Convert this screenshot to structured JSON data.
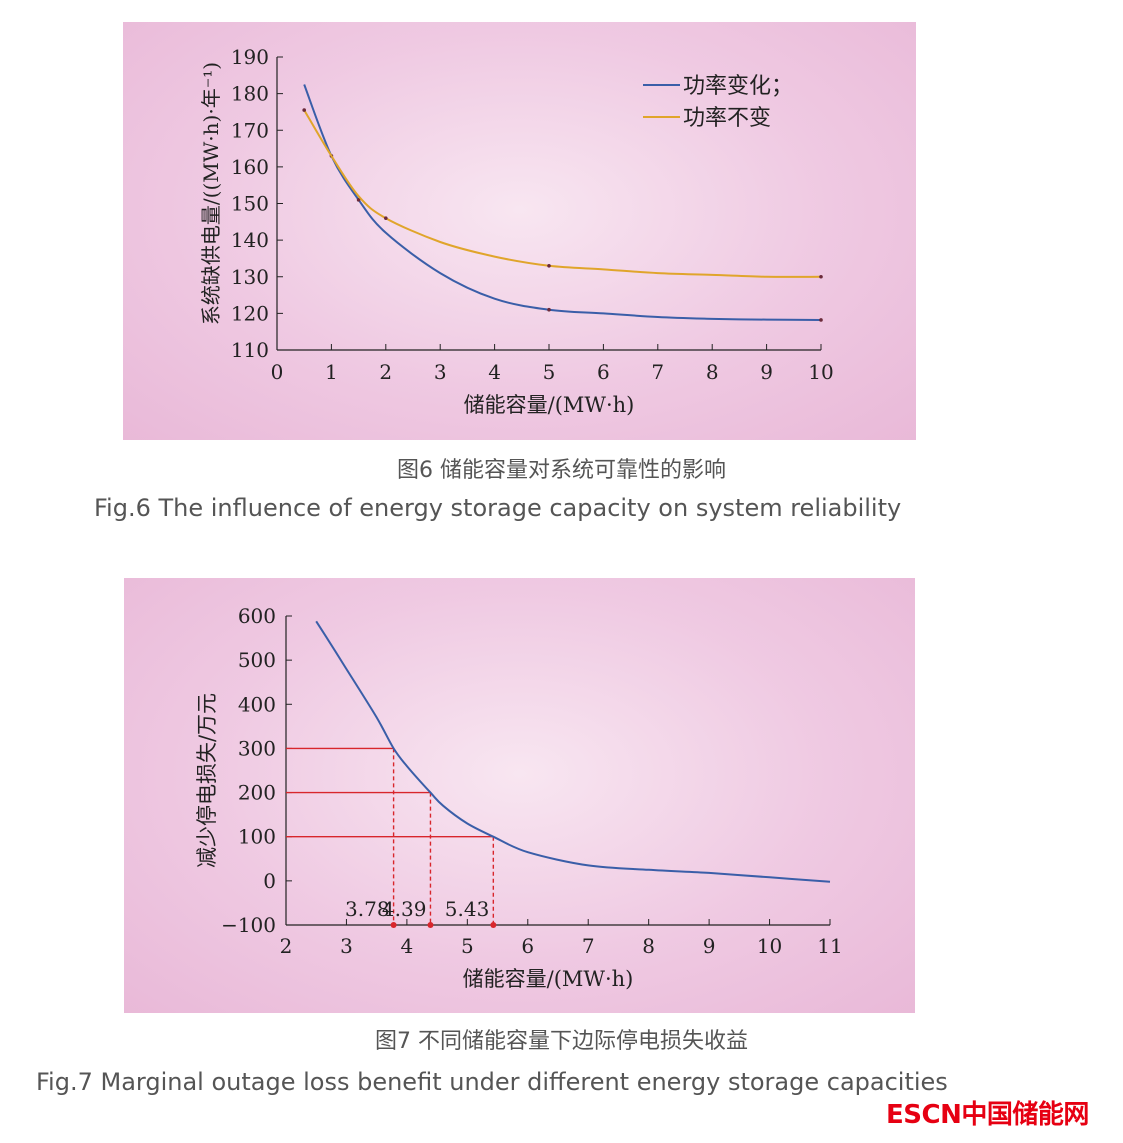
{
  "chart_data": [
    {
      "type": "line",
      "title": "",
      "xlabel": "储能容量/(MW·h)",
      "ylabel": "系统缺供电量/((MW·h)·年⁻¹)",
      "xlim": [
        0,
        10
      ],
      "ylim": [
        110,
        190
      ],
      "xticks": [
        0,
        1,
        2,
        3,
        4,
        5,
        6,
        7,
        8,
        9,
        10
      ],
      "yticks": [
        110,
        120,
        130,
        140,
        150,
        160,
        170,
        180,
        190
      ],
      "legend_position": "top-right",
      "grid": false,
      "series": [
        {
          "name": "功率变化；",
          "color": "#3a5ea8",
          "x": [
            0.5,
            1,
            1.5,
            2,
            3,
            4,
            5,
            6,
            7,
            8,
            9,
            10
          ],
          "y": [
            182.5,
            163,
            151,
            142,
            131,
            124,
            121,
            120,
            119,
            118.5,
            118.3,
            118.2
          ],
          "markers": [
            1,
            1.5,
            5,
            10
          ]
        },
        {
          "name": "功率不变",
          "color": "#e0a52b",
          "x": [
            0.5,
            1,
            1.5,
            2,
            3,
            4,
            5,
            6,
            7,
            8,
            9,
            10
          ],
          "y": [
            175.5,
            163,
            152,
            146,
            139.5,
            135.5,
            133,
            132,
            131,
            130.5,
            130,
            130
          ],
          "markers": [
            0.5,
            2,
            5,
            10
          ]
        }
      ]
    },
    {
      "type": "line",
      "title": "",
      "xlabel": "储能容量/(MW·h)",
      "ylabel": "减少停电损失/万元",
      "xlim": [
        2,
        11
      ],
      "ylim": [
        -100,
        600
      ],
      "xticks": [
        2,
        3,
        4,
        5,
        6,
        7,
        8,
        9,
        10,
        11
      ],
      "yticks": [
        -100,
        0,
        100,
        200,
        300,
        400,
        500,
        600
      ],
      "ytick_labels": [
        "−100",
        "0",
        "100",
        "200",
        "300",
        "400",
        "500",
        "600"
      ],
      "grid": false,
      "series": [
        {
          "color": "#3a5ea8",
          "x": [
            2.5,
            3,
            3.5,
            3.78,
            4,
            4.39,
            4.6,
            5,
            5.43,
            6,
            7,
            8,
            9,
            10,
            11
          ],
          "y": [
            588,
            480,
            370,
            300,
            260,
            200,
            170,
            130,
            100,
            65,
            35,
            25,
            18,
            8,
            -2
          ]
        }
      ],
      "reference_points": [
        {
          "x": 3.78,
          "y": 300,
          "label": "3.78"
        },
        {
          "x": 4.39,
          "y": 200,
          "label": "4.39"
        },
        {
          "x": 5.43,
          "y": 100,
          "label": "5.43"
        }
      ],
      "reference_color": "#d8262c"
    }
  ],
  "captions": {
    "fig6_cn": "图6  储能容量对系统可靠性的影响",
    "fig6_en": "Fig.6  The influence of energy storage capacity on system reliability",
    "fig7_cn": "图7  不同储能容量下边际停电损失收益",
    "fig7_en": "Fig.7  Marginal outage loss benefit under different energy storage capacities"
  },
  "logo": "ESCN中国储能网"
}
